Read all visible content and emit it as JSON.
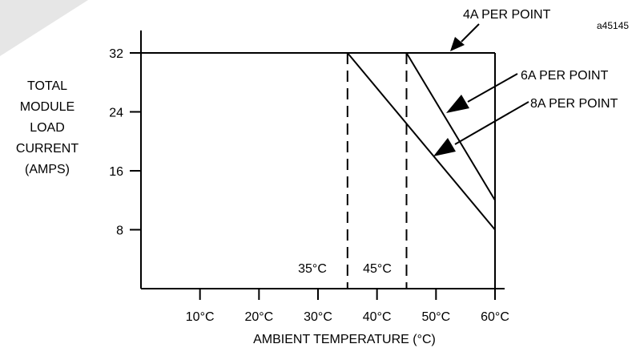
{
  "figure_id": "a45145",
  "chart_data": {
    "type": "line",
    "xlabel": "AMBIENT TEMPERATURE (°C)",
    "ylabel_lines": [
      "TOTAL",
      "MODULE",
      "LOAD",
      "CURRENT",
      "(AMPS)"
    ],
    "xlim": [
      0,
      60
    ],
    "ylim": [
      0,
      36
    ],
    "x_ticks": [
      10,
      20,
      30,
      40,
      50,
      60
    ],
    "x_tick_labels": [
      "10°C",
      "20°C",
      "30°C",
      "40°C",
      "50°C",
      "60°C"
    ],
    "y_ticks": [
      8,
      16,
      24,
      32
    ],
    "y_tick_labels": [
      "8",
      "16",
      "24",
      "32"
    ],
    "grid": false,
    "series": [
      {
        "name": "4A PER POINT",
        "x": [
          0,
          60
        ],
        "y": [
          32,
          32
        ]
      },
      {
        "name": "6A PER POINT",
        "x": [
          0,
          45,
          60
        ],
        "y": [
          32,
          32,
          12
        ]
      },
      {
        "name": "8A PER POINT",
        "x": [
          0,
          35,
          60
        ],
        "y": [
          32,
          32,
          8
        ]
      }
    ],
    "reference_lines": [
      {
        "x": 35,
        "label": "35°C",
        "style": "dashed"
      },
      {
        "x": 45,
        "label": "45°C",
        "style": "dashed"
      }
    ]
  }
}
